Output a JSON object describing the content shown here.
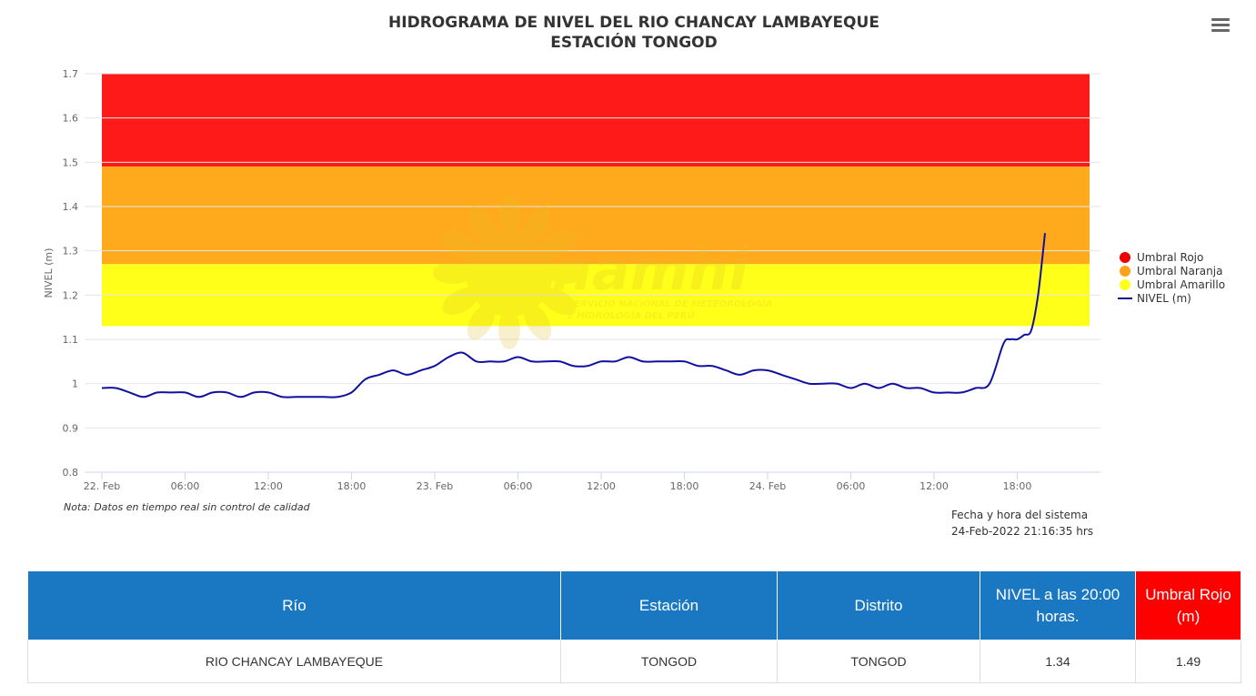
{
  "chart": {
    "title_line1": "HIDROGRAMA DE NIVEL DEL RIO CHANCAY LAMBAYEQUE",
    "title_line2": "ESTACIÓN TONGOD",
    "watermark_main": "Senamhi",
    "watermark_sub1": "SERVICIO NACIONAL DE METEOROLOGÍA",
    "watermark_sub2": "E HIDROLOGÍA DEL PERÚ",
    "note": "Nota: Datos en tiempo real sin control de calidad",
    "system_time_label": "Fecha y hora del sistema",
    "system_time_value": "24-Feb-2022 21:16:35 hrs",
    "menu_icon": "hamburger-menu-icon"
  },
  "chart_data": {
    "type": "line",
    "title": "HIDROGRAMA DE NIVEL DEL RIO CHANCAY LAMBAYEQUE ESTACIÓN TONGOD",
    "xlabel": "",
    "ylabel": "NIVEL (m)",
    "ylim": [
      0.8,
      1.7
    ],
    "yticks": [
      0.8,
      0.9,
      1,
      1.1,
      1.2,
      1.3,
      1.4,
      1.5,
      1.6,
      1.7
    ],
    "ytick_labels": [
      "0.8",
      "0.9",
      "1",
      "1.1",
      "1.2",
      "1.3",
      "1.4",
      "1.5",
      "1.6",
      "1.7"
    ],
    "xlim": [
      "2022-02-22 00:00",
      "2022-02-25 00:00"
    ],
    "xticks": [
      "22. Feb",
      "06:00",
      "12:00",
      "18:00",
      "23. Feb",
      "06:00",
      "12:00",
      "18:00",
      "24. Feb",
      "06:00",
      "12:00",
      "18:00"
    ],
    "grid": true,
    "legend_position": "right",
    "bands": [
      {
        "name": "Umbral Rojo",
        "from": 1.49,
        "to": 1.7,
        "color": "#ff1a1a"
      },
      {
        "name": "Umbral Naranja",
        "from": 1.27,
        "to": 1.49,
        "color": "#ffaa1d"
      },
      {
        "name": "Umbral Amarillo",
        "from": 1.13,
        "to": 1.27,
        "color": "#ffff1a"
      }
    ],
    "legend": [
      {
        "name": "Umbral Rojo",
        "color": "#ee0000",
        "shape": "circle"
      },
      {
        "name": "Umbral Naranja",
        "color": "#ffa21a",
        "shape": "circle"
      },
      {
        "name": "Umbral Amarillo",
        "color": "#ffff1a",
        "shape": "circle"
      },
      {
        "name": "NIVEL (m)",
        "color": "#1010a0",
        "shape": "line"
      }
    ],
    "series": [
      {
        "name": "NIVEL (m)",
        "color": "#1010a0",
        "points": [
          [
            "2022-02-22 00:00",
            0.99
          ],
          [
            "2022-02-22 01:00",
            0.99
          ],
          [
            "2022-02-22 02:00",
            0.98
          ],
          [
            "2022-02-22 03:00",
            0.97
          ],
          [
            "2022-02-22 04:00",
            0.98
          ],
          [
            "2022-02-22 05:00",
            0.98
          ],
          [
            "2022-02-22 06:00",
            0.98
          ],
          [
            "2022-02-22 07:00",
            0.97
          ],
          [
            "2022-02-22 08:00",
            0.98
          ],
          [
            "2022-02-22 09:00",
            0.98
          ],
          [
            "2022-02-22 10:00",
            0.97
          ],
          [
            "2022-02-22 11:00",
            0.98
          ],
          [
            "2022-02-22 12:00",
            0.98
          ],
          [
            "2022-02-22 13:00",
            0.97
          ],
          [
            "2022-02-22 14:00",
            0.97
          ],
          [
            "2022-02-22 15:00",
            0.97
          ],
          [
            "2022-02-22 16:00",
            0.97
          ],
          [
            "2022-02-22 17:00",
            0.97
          ],
          [
            "2022-02-22 18:00",
            0.98
          ],
          [
            "2022-02-22 19:00",
            1.01
          ],
          [
            "2022-02-22 20:00",
            1.02
          ],
          [
            "2022-02-22 21:00",
            1.03
          ],
          [
            "2022-02-22 22:00",
            1.02
          ],
          [
            "2022-02-22 23:00",
            1.03
          ],
          [
            "2022-02-23 00:00",
            1.04
          ],
          [
            "2022-02-23 01:00",
            1.06
          ],
          [
            "2022-02-23 02:00",
            1.07
          ],
          [
            "2022-02-23 03:00",
            1.05
          ],
          [
            "2022-02-23 04:00",
            1.05
          ],
          [
            "2022-02-23 05:00",
            1.05
          ],
          [
            "2022-02-23 06:00",
            1.06
          ],
          [
            "2022-02-23 07:00",
            1.05
          ],
          [
            "2022-02-23 08:00",
            1.05
          ],
          [
            "2022-02-23 09:00",
            1.05
          ],
          [
            "2022-02-23 10:00",
            1.04
          ],
          [
            "2022-02-23 11:00",
            1.04
          ],
          [
            "2022-02-23 12:00",
            1.05
          ],
          [
            "2022-02-23 13:00",
            1.05
          ],
          [
            "2022-02-23 14:00",
            1.06
          ],
          [
            "2022-02-23 15:00",
            1.05
          ],
          [
            "2022-02-23 16:00",
            1.05
          ],
          [
            "2022-02-23 17:00",
            1.05
          ],
          [
            "2022-02-23 18:00",
            1.05
          ],
          [
            "2022-02-23 19:00",
            1.04
          ],
          [
            "2022-02-23 20:00",
            1.04
          ],
          [
            "2022-02-23 21:00",
            1.03
          ],
          [
            "2022-02-23 22:00",
            1.02
          ],
          [
            "2022-02-23 23:00",
            1.03
          ],
          [
            "2022-02-24 00:00",
            1.03
          ],
          [
            "2022-02-24 01:00",
            1.02
          ],
          [
            "2022-02-24 02:00",
            1.01
          ],
          [
            "2022-02-24 03:00",
            1.0
          ],
          [
            "2022-02-24 04:00",
            1.0
          ],
          [
            "2022-02-24 05:00",
            1.0
          ],
          [
            "2022-02-24 06:00",
            0.99
          ],
          [
            "2022-02-24 07:00",
            1.0
          ],
          [
            "2022-02-24 08:00",
            0.99
          ],
          [
            "2022-02-24 09:00",
            1.0
          ],
          [
            "2022-02-24 10:00",
            0.99
          ],
          [
            "2022-02-24 11:00",
            0.99
          ],
          [
            "2022-02-24 12:00",
            0.98
          ],
          [
            "2022-02-24 13:00",
            0.98
          ],
          [
            "2022-02-24 14:00",
            0.98
          ],
          [
            "2022-02-24 15:00",
            0.99
          ],
          [
            "2022-02-24 16:00",
            1.0
          ],
          [
            "2022-02-24 17:00",
            1.09
          ],
          [
            "2022-02-24 17:30",
            1.1
          ],
          [
            "2022-02-24 18:00",
            1.1
          ],
          [
            "2022-02-24 18:30",
            1.11
          ],
          [
            "2022-02-24 19:00",
            1.12
          ],
          [
            "2022-02-24 19:30",
            1.2
          ],
          [
            "2022-02-24 20:00",
            1.34
          ]
        ]
      }
    ]
  },
  "table": {
    "headers": [
      "Río",
      "Estación",
      "Distrito",
      "NIVEL a las 20:00 horas.",
      "Umbral Rojo (m)"
    ],
    "header_colors": [
      "#1a78c2",
      "#1a78c2",
      "#1a78c2",
      "#1a78c2",
      "#ff0000"
    ],
    "rows": [
      [
        "RIO CHANCAY LAMBAYEQUE",
        "TONGOD",
        "TONGOD",
        "1.34",
        "1.49"
      ]
    ]
  }
}
